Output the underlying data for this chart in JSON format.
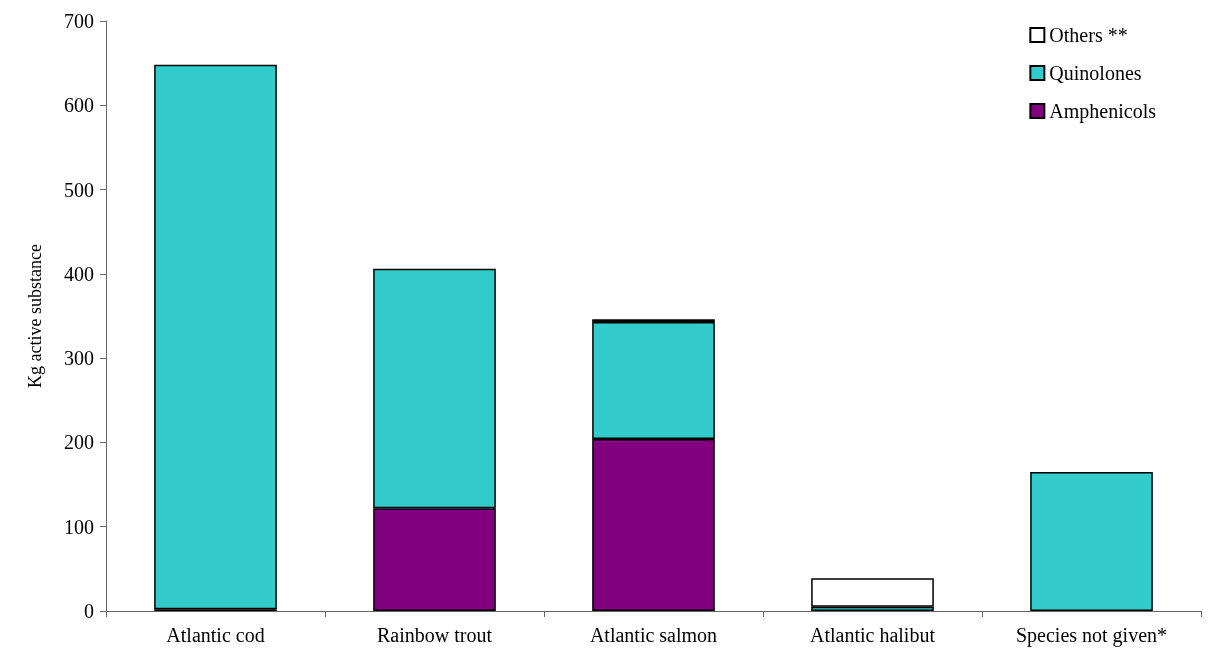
{
  "chart_data": {
    "type": "bar",
    "stacked": true,
    "ylabel": "Kg active substance",
    "categories": [
      "Atlantic cod",
      "Rainbow trout",
      "Atlantic salmon",
      "Atlantic halibut",
      "Species not given*"
    ],
    "series": [
      {
        "name": "Amphenicols",
        "color": "#800080",
        "values": [
          2,
          122,
          204,
          null,
          null
        ]
      },
      {
        "name": "Quinolones",
        "color": "#33cccc",
        "values": [
          646,
          284,
          139,
          5,
          165
        ]
      },
      {
        "name": "Others **",
        "color": "#ffffff",
        "values": [
          null,
          null,
          3,
          34,
          null
        ]
      }
    ],
    "ylim": [
      0,
      700
    ],
    "yticks": [
      0,
      100,
      200,
      300,
      400,
      500,
      600,
      700
    ],
    "grid": false,
    "legend": "top right"
  }
}
